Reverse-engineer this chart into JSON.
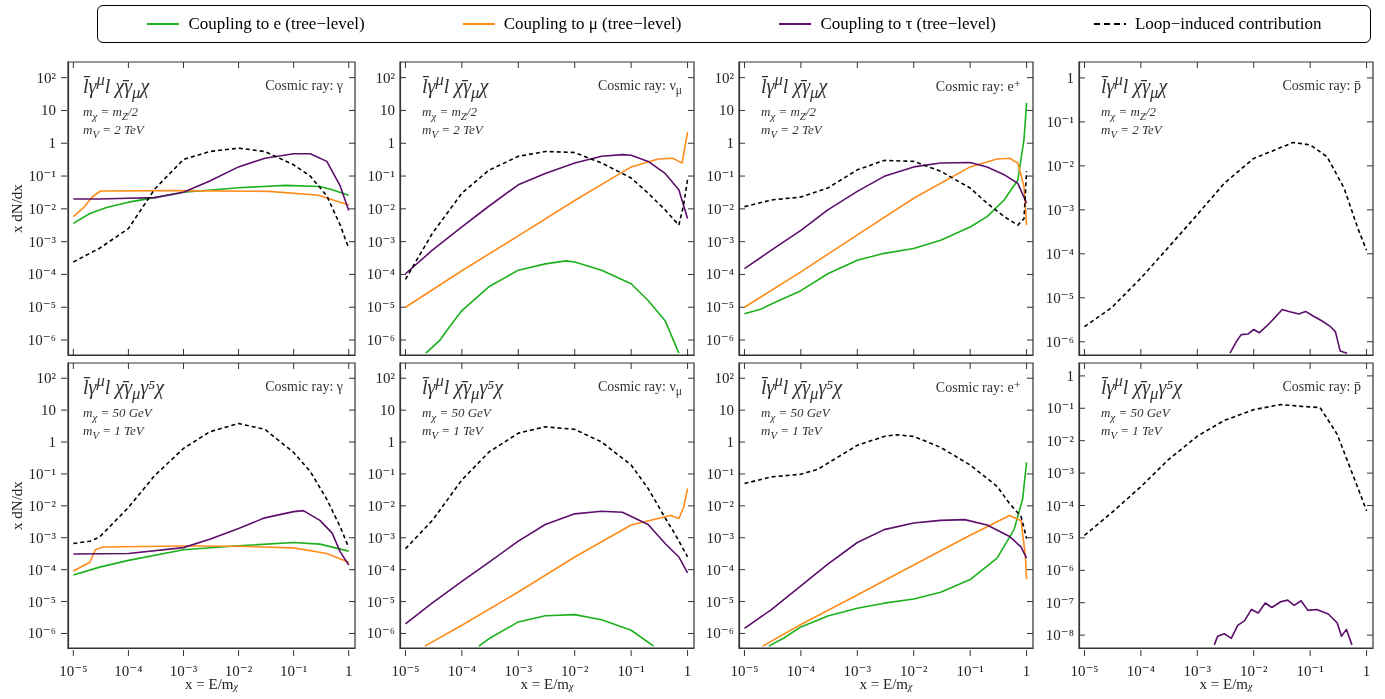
{
  "chart_data": [
    {
      "type": "line",
      "log": "xy",
      "legend": "top",
      "tick_labels": "y",
      "ylabel": "x dN/dx",
      "xlim": [
        8e-06,
        1.3
      ],
      "ylim": [
        3.5e-07,
        300
      ],
      "xticks": [
        {
          "value": 1e-05,
          "label": null
        },
        {
          "value": 0.0001,
          "label": null
        },
        {
          "value": 0.001,
          "label": null
        },
        {
          "value": 0.01,
          "label": null
        },
        {
          "value": 0.1,
          "label": null
        },
        {
          "value": 1,
          "label": null
        }
      ],
      "yticks": [
        {
          "value": 1e-06,
          "label": "10⁻⁶"
        },
        {
          "value": 1e-05,
          "label": "10⁻⁵"
        },
        {
          "value": 0.0001,
          "label": "10⁻⁴"
        },
        {
          "value": 0.001,
          "label": "10⁻³"
        },
        {
          "value": 0.01,
          "label": "10⁻²"
        },
        {
          "value": 0.1,
          "label": "10⁻¹"
        },
        {
          "value": 1,
          "label": "1"
        },
        {
          "value": 10,
          "label": "10"
        },
        {
          "value": 100,
          "label": "10²"
        }
      ],
      "annotations": [
        "l̄γ$^{μ}$l χ̄γ$_{μ}$χ",
        "Cosmic ray: γ",
        "m$_{χ}$ = m$_{Z}$/2",
        "m$_{V}$ = 2 TeV"
      ],
      "series": [
        {
          "name": "Coupling to e (tree−level)",
          "color": "#1cb01c",
          "x": [
            1e-05,
            2e-05,
            4e-05,
            0.0001,
            0.0003,
            0.001,
            0.01,
            0.07,
            0.3,
            0.5,
            1
          ],
          "values": [
            0.0036,
            0.0072,
            0.011,
            0.016,
            0.022,
            0.032,
            0.044,
            0.052,
            0.048,
            0.038,
            0.026
          ]
        },
        {
          "name": "Coupling to μ (tree−level)",
          "color": "#ff8c1a",
          "x": [
            1e-05,
            1.5e-05,
            2.2e-05,
            3.1e-05,
            0.0006,
            0.036,
            0.28,
            1
          ],
          "values": [
            0.0058,
            0.0105,
            0.023,
            0.035,
            0.036,
            0.034,
            0.026,
            0.013
          ]
        },
        {
          "name": "Coupling to τ (tree−level)",
          "color": "#5c0f6b",
          "x": [
            1e-05,
            3e-05,
            0.0001,
            0.0003,
            0.001,
            0.003,
            0.01,
            0.03,
            0.1,
            0.2,
            0.4,
            0.7,
            1
          ],
          "values": [
            0.02,
            0.02,
            0.021,
            0.022,
            0.032,
            0.071,
            0.19,
            0.35,
            0.48,
            0.48,
            0.28,
            0.05,
            0.0089
          ]
        },
        {
          "name": "Loop−induced contribution",
          "color": "#000000",
          "line_style": "dashed",
          "x": [
            1e-05,
            3e-05,
            0.0001,
            0.0003,
            0.001,
            0.003,
            0.01,
            0.03,
            0.1,
            0.2,
            0.4,
            0.7,
            1
          ],
          "values": [
            0.00024,
            0.00063,
            0.0025,
            0.04,
            0.32,
            0.56,
            0.71,
            0.56,
            0.22,
            0.1,
            0.025,
            0.0032,
            0.00063
          ]
        }
      ]
    },
    {
      "type": "line",
      "log": "xy",
      "tick_labels": "y",
      "xlim": [
        8e-06,
        1.3
      ],
      "ylim": [
        3.5e-07,
        300
      ],
      "xticks": [
        {
          "value": 1e-05,
          "label": null
        },
        {
          "value": 0.0001,
          "label": null
        },
        {
          "value": 0.001,
          "label": null
        },
        {
          "value": 0.01,
          "label": null
        },
        {
          "value": 0.1,
          "label": null
        },
        {
          "value": 1,
          "label": null
        }
      ],
      "yticks": [
        {
          "value": 1e-06,
          "label": "10⁻⁶"
        },
        {
          "value": 1e-05,
          "label": "10⁻⁵"
        },
        {
          "value": 0.0001,
          "label": "10⁻⁴"
        },
        {
          "value": 0.001,
          "label": "10⁻³"
        },
        {
          "value": 0.01,
          "label": "10⁻²"
        },
        {
          "value": 0.1,
          "label": "10⁻¹"
        },
        {
          "value": 1,
          "label": "1"
        },
        {
          "value": 10,
          "label": "10"
        },
        {
          "value": 100,
          "label": "10²"
        }
      ],
      "annotations": [
        "l̄γ$^{μ}$l χ̄γ$_{μ}$χ",
        "Cosmic ray: ν$_{μ}$",
        "m$_{χ}$ = m$_{Z}$/2",
        "m$_{V}$ = 2 TeV"
      ],
      "series": [
        {
          "color": "#1cb01c",
          "x": [
            2.3e-05,
            4.1e-05,
            6e-05,
            0.0001,
            0.0003,
            0.001,
            0.003,
            0.007,
            0.01,
            0.03,
            0.1,
            0.2,
            0.4,
            0.7
          ],
          "values": [
            4e-07,
            1e-06,
            2.5e-06,
            7.9e-06,
            4.2e-05,
            0.000135,
            0.00021,
            0.00026,
            0.00024,
            0.000135,
            5.2e-05,
            1.6e-05,
            3.9e-06,
            4e-07
          ]
        },
        {
          "color": "#ff8c1a",
          "x": [
            1e-05,
            0.0001,
            0.001,
            0.01,
            0.1,
            0.3,
            0.55,
            0.7,
            0.8,
            0.9,
            1
          ],
          "values": [
            1e-05,
            0.00013,
            0.0015,
            0.018,
            0.19,
            0.33,
            0.35,
            0.28,
            0.25,
            0.79,
            2.2
          ]
        },
        {
          "color": "#5c0f6b",
          "x": [
            1e-05,
            3e-05,
            0.0001,
            0.0003,
            0.001,
            0.003,
            0.01,
            0.03,
            0.07,
            0.1,
            0.2,
            0.4,
            0.7,
            1
          ],
          "values": [
            0.000105,
            0.00055,
            0.0028,
            0.012,
            0.054,
            0.12,
            0.25,
            0.4,
            0.45,
            0.43,
            0.28,
            0.12,
            0.038,
            0.0051
          ]
        },
        {
          "color": "#000000",
          "line_style": "dashed",
          "x": [
            1e-05,
            3e-05,
            0.0001,
            0.0003,
            0.001,
            0.003,
            0.01,
            0.03,
            0.1,
            0.2,
            0.4,
            0.7,
            0.85,
            1
          ],
          "values": [
            7.1e-05,
            0.0018,
            0.03,
            0.15,
            0.4,
            0.56,
            0.52,
            0.25,
            0.087,
            0.03,
            0.0093,
            0.0032,
            0.013,
            0.079
          ]
        }
      ]
    },
    {
      "type": "line",
      "log": "xy",
      "tick_labels": "y",
      "xlim": [
        8e-06,
        1.3
      ],
      "ylim": [
        3.5e-07,
        300
      ],
      "xticks": [
        {
          "value": 1e-05,
          "label": null
        },
        {
          "value": 0.0001,
          "label": null
        },
        {
          "value": 0.001,
          "label": null
        },
        {
          "value": 0.01,
          "label": null
        },
        {
          "value": 0.1,
          "label": null
        },
        {
          "value": 1,
          "label": null
        }
      ],
      "yticks": [
        {
          "value": 1e-06,
          "label": "10⁻⁶"
        },
        {
          "value": 1e-05,
          "label": "10⁻⁵"
        },
        {
          "value": 0.0001,
          "label": "10⁻⁴"
        },
        {
          "value": 0.001,
          "label": "10⁻³"
        },
        {
          "value": 0.01,
          "label": "10⁻²"
        },
        {
          "value": 0.1,
          "label": "10⁻¹"
        },
        {
          "value": 1,
          "label": "1"
        },
        {
          "value": 10,
          "label": "10"
        },
        {
          "value": 100,
          "label": "10²"
        }
      ],
      "annotations": [
        "l̄γ$^{μ}$l χ̄γ$_{μ}$χ",
        "Cosmic ray: e⁺",
        "m$_{χ}$ = m$_{Z}$/2",
        "m$_{V}$ = 2 TeV"
      ],
      "series": [
        {
          "color": "#1cb01c",
          "x": [
            1e-05,
            2e-05,
            3e-05,
            0.0001,
            0.0003,
            0.001,
            0.003,
            0.01,
            0.03,
            0.1,
            0.2,
            0.4,
            0.7,
            0.9,
            1
          ],
          "values": [
            6.3e-06,
            8.9e-06,
            1.26e-05,
            3.2e-05,
            0.000105,
            0.00027,
            0.00044,
            0.00062,
            0.0011,
            0.0028,
            0.0058,
            0.0186,
            0.076,
            1.3,
            17
          ]
        },
        {
          "color": "#ff8c1a",
          "x": [
            1e-05,
            0.0001,
            0.001,
            0.01,
            0.1,
            0.3,
            0.5,
            0.7,
            0.9,
            1
          ],
          "values": [
            1e-05,
            0.00012,
            0.0016,
            0.021,
            0.19,
            0.33,
            0.35,
            0.25,
            0.048,
            0.0032
          ]
        },
        {
          "color": "#5c0f6b",
          "x": [
            1e-05,
            3e-05,
            0.0001,
            0.0003,
            0.001,
            0.003,
            0.01,
            0.03,
            0.1,
            0.2,
            0.4,
            0.7,
            1
          ],
          "values": [
            0.00015,
            0.00055,
            0.0022,
            0.0093,
            0.034,
            0.098,
            0.19,
            0.25,
            0.26,
            0.19,
            0.11,
            0.06,
            0.015
          ]
        },
        {
          "color": "#000000",
          "line_style": "dashed",
          "x": [
            1e-05,
            3e-05,
            0.0001,
            0.0003,
            0.001,
            0.003,
            0.01,
            0.03,
            0.1,
            0.2,
            0.4,
            0.7,
            0.9,
            1
          ],
          "values": [
            0.0117,
            0.0186,
            0.023,
            0.043,
            0.155,
            0.3,
            0.28,
            0.14,
            0.043,
            0.0148,
            0.0058,
            0.0032,
            0.005,
            0.14
          ]
        }
      ]
    },
    {
      "type": "line",
      "log": "xy",
      "tick_labels": "y",
      "xlim": [
        8e-06,
        1.3
      ],
      "ylim": [
        5e-07,
        2.3
      ],
      "xticks": [
        {
          "value": 1e-05,
          "label": null
        },
        {
          "value": 0.0001,
          "label": null
        },
        {
          "value": 0.001,
          "label": null
        },
        {
          "value": 0.01,
          "label": null
        },
        {
          "value": 0.1,
          "label": null
        },
        {
          "value": 1,
          "label": null
        }
      ],
      "yticks": [
        {
          "value": 1e-06,
          "label": "10⁻⁶"
        },
        {
          "value": 1e-05,
          "label": "10⁻⁵"
        },
        {
          "value": 0.0001,
          "label": "10⁻⁴"
        },
        {
          "value": 0.001,
          "label": "10⁻³"
        },
        {
          "value": 0.01,
          "label": "10⁻²"
        },
        {
          "value": 0.1,
          "label": "10⁻¹"
        },
        {
          "value": 1,
          "label": "1"
        }
      ],
      "annotations": [
        "l̄γ$^{μ}$l χ̄γ$_{μ}$χ",
        "Cosmic ray: p̄",
        "m$_{χ}$ = m$_{Z}$/2",
        "m$_{V}$ = 2 TeV"
      ],
      "series": [
        {
          "color": "#5c0f6b",
          "x": [
            0.0038,
            0.0049,
            0.006,
            0.0079,
            0.01,
            0.0125,
            0.0165,
            0.023,
            0.032,
            0.042,
            0.063,
            0.083,
            0.115,
            0.16,
            0.23,
            0.28,
            0.34,
            0.45
          ],
          "values": [
            5.5e-07,
            1e-06,
            1.45e-06,
            1.5e-06,
            1.9e-06,
            1.6e-06,
            2.2e-06,
            3.4e-06,
            5.4e-06,
            4.9e-06,
            4.3e-06,
            4.9e-06,
            3.8e-06,
            3e-06,
            2.2e-06,
            1.7e-06,
            6.2e-07,
            5.5e-07
          ]
        },
        {
          "color": "#000000",
          "line_style": "dashed",
          "x": [
            1e-05,
            3e-05,
            0.0001,
            0.0003,
            0.001,
            0.003,
            0.01,
            0.03,
            0.05,
            0.1,
            0.2,
            0.4,
            0.7,
            1
          ],
          "values": [
            2.2e-06,
            5.9e-06,
            2.8e-05,
            0.000135,
            0.00078,
            0.004,
            0.0148,
            0.026,
            0.034,
            0.03,
            0.016,
            0.0031,
            0.00038,
            0.00012
          ]
        }
      ]
    },
    {
      "type": "line",
      "log": "xy",
      "ylabel": "x dN/dx",
      "xlabel": "x = E/m$_{χ}$",
      "xlim": [
        8e-06,
        1.3
      ],
      "ylim": [
        3.5e-07,
        300
      ],
      "xticks": [
        {
          "value": 1e-05,
          "label": "10⁻⁵"
        },
        {
          "value": 0.0001,
          "label": "10⁻⁴"
        },
        {
          "value": 0.001,
          "label": "10⁻³"
        },
        {
          "value": 0.01,
          "label": "10⁻²"
        },
        {
          "value": 0.1,
          "label": "10⁻¹"
        },
        {
          "value": 1,
          "label": "1"
        }
      ],
      "yticks": [
        {
          "value": 1e-06,
          "label": "10⁻⁶"
        },
        {
          "value": 1e-05,
          "label": "10⁻⁵"
        },
        {
          "value": 0.0001,
          "label": "10⁻⁴"
        },
        {
          "value": 0.001,
          "label": "10⁻³"
        },
        {
          "value": 0.01,
          "label": "10⁻²"
        },
        {
          "value": 0.1,
          "label": "10⁻¹"
        },
        {
          "value": 1,
          "label": "1"
        },
        {
          "value": 10,
          "label": "10"
        },
        {
          "value": 100,
          "label": "10²"
        }
      ],
      "annotations": [
        "l̄γ$^{μ}$l χ̄γ$_{μ}$γ⁵χ",
        "Cosmic ray: γ",
        "m$_{χ}$ = 50 GeV",
        "m$_{V}$ = 1 TeV"
      ],
      "series": [
        {
          "color": "#1cb01c",
          "x": [
            1e-05,
            3e-05,
            0.0001,
            0.001,
            0.01,
            0.1,
            0.3,
            1
          ],
          "values": [
            6.8e-05,
            0.00012,
            0.000195,
            0.00042,
            0.00056,
            0.00071,
            0.00063,
            0.00038
          ]
        },
        {
          "color": "#ff8c1a",
          "x": [
            1e-05,
            2e-05,
            2.5e-05,
            3.5e-05,
            0.001,
            0.01,
            0.1,
            0.4,
            1
          ],
          "values": [
            9.1e-05,
            0.00017,
            0.00042,
            0.00051,
            0.00055,
            0.00054,
            0.00048,
            0.00032,
            0.00017
          ]
        },
        {
          "color": "#5c0f6b",
          "x": [
            1e-05,
            0.0001,
            0.001,
            0.003,
            0.01,
            0.03,
            0.1,
            0.15,
            0.3,
            0.5,
            0.7,
            1
          ],
          "values": [
            0.00031,
            0.00032,
            0.00049,
            0.00089,
            0.00195,
            0.0042,
            0.0066,
            0.0071,
            0.0035,
            0.0014,
            0.00036,
            0.00014
          ]
        },
        {
          "color": "#000000",
          "line_style": "dashed",
          "x": [
            1e-05,
            2e-05,
            3e-05,
            0.0001,
            0.0003,
            0.001,
            0.003,
            0.01,
            0.03,
            0.1,
            0.2,
            0.4,
            0.7,
            1
          ],
          "values": [
            0.00066,
            0.00078,
            0.00105,
            0.0089,
            0.089,
            0.63,
            2.1,
            3.8,
            2.5,
            0.47,
            0.12,
            0.016,
            0.0022,
            0.00049
          ]
        }
      ]
    },
    {
      "type": "line",
      "log": "xy",
      "xlabel": "x = E/m$_{χ}$",
      "xlim": [
        8e-06,
        1.3
      ],
      "ylim": [
        3.5e-07,
        300
      ],
      "xticks": [
        {
          "value": 1e-05,
          "label": "10⁻⁵"
        },
        {
          "value": 0.0001,
          "label": "10⁻⁴"
        },
        {
          "value": 0.001,
          "label": "10⁻³"
        },
        {
          "value": 0.01,
          "label": "10⁻²"
        },
        {
          "value": 0.1,
          "label": "10⁻¹"
        },
        {
          "value": 1,
          "label": "1"
        }
      ],
      "yticks": [
        {
          "value": 1e-06,
          "label": "10⁻⁶"
        },
        {
          "value": 1e-05,
          "label": "10⁻⁵"
        },
        {
          "value": 0.0001,
          "label": "10⁻⁴"
        },
        {
          "value": 0.001,
          "label": "10⁻³"
        },
        {
          "value": 0.01,
          "label": "10⁻²"
        },
        {
          "value": 0.1,
          "label": "10⁻¹"
        },
        {
          "value": 1,
          "label": "1"
        },
        {
          "value": 10,
          "label": "10"
        },
        {
          "value": 100,
          "label": "10²"
        }
      ],
      "annotations": [
        "l̄γ$^{μ}$l χ̄γ$_{μ}$γ⁵χ",
        "Cosmic ray: ν$_{μ}$",
        "m$_{χ}$ = 50 GeV",
        "m$_{V}$ = 1 TeV"
      ],
      "series": [
        {
          "color": "#1cb01c",
          "x": [
            0.0002,
            0.0003,
            0.001,
            0.003,
            0.01,
            0.03,
            0.1,
            0.25
          ],
          "values": [
            4e-07,
            6.8e-07,
            2.3e-06,
            3.6e-06,
            3.9e-06,
            2.7e-06,
            1.26e-06,
            4e-07
          ]
        },
        {
          "color": "#ff8c1a",
          "x": [
            2.2e-05,
            0.0001,
            0.001,
            0.01,
            0.1,
            0.5,
            0.7,
            0.85,
            1
          ],
          "values": [
            4e-07,
            1.8e-06,
            2e-05,
            0.00025,
            0.0025,
            0.005,
            0.004,
            0.0089,
            0.035
          ]
        },
        {
          "color": "#5c0f6b",
          "x": [
            1e-05,
            3e-05,
            0.0001,
            0.0003,
            0.001,
            0.003,
            0.01,
            0.03,
            0.07,
            0.2,
            0.4,
            0.7,
            1
          ],
          "values": [
            2e-06,
            9.1e-06,
            4.3e-05,
            0.00017,
            0.00078,
            0.0026,
            0.0056,
            0.0068,
            0.0063,
            0.0026,
            0.00066,
            0.00025,
            7.9e-05
          ]
        },
        {
          "color": "#000000",
          "line_style": "dashed",
          "x": [
            1e-05,
            3e-05,
            0.0001,
            0.0003,
            0.001,
            0.003,
            0.01,
            0.03,
            0.1,
            0.2,
            0.4,
            0.6,
            1
          ],
          "values": [
            0.00045,
            0.0035,
            0.065,
            0.48,
            1.9,
            3,
            2.5,
            1,
            0.19,
            0.035,
            0.0042,
            0.0013,
            0.00025
          ]
        }
      ]
    },
    {
      "type": "line",
      "log": "xy",
      "xlabel": "x = E/m$_{χ}$",
      "xlim": [
        8e-06,
        1.3
      ],
      "ylim": [
        3.5e-07,
        300
      ],
      "xticks": [
        {
          "value": 1e-05,
          "label": "10⁻⁵"
        },
        {
          "value": 0.0001,
          "label": "10⁻⁴"
        },
        {
          "value": 0.001,
          "label": "10⁻³"
        },
        {
          "value": 0.01,
          "label": "10⁻²"
        },
        {
          "value": 0.1,
          "label": "10⁻¹"
        },
        {
          "value": 1,
          "label": "1"
        }
      ],
      "yticks": [
        {
          "value": 1e-06,
          "label": "10⁻⁶"
        },
        {
          "value": 1e-05,
          "label": "10⁻⁵"
        },
        {
          "value": 0.0001,
          "label": "10⁻⁴"
        },
        {
          "value": 0.001,
          "label": "10⁻³"
        },
        {
          "value": 0.01,
          "label": "10⁻²"
        },
        {
          "value": 0.1,
          "label": "10⁻¹"
        },
        {
          "value": 1,
          "label": "1"
        },
        {
          "value": 10,
          "label": "10"
        },
        {
          "value": 100,
          "label": "10²"
        }
      ],
      "annotations": [
        "l̄γ$^{μ}$l χ̄γ$_{μ}$γ⁵χ",
        "Cosmic ray: e⁺",
        "m$_{χ}$ = 50 GeV",
        "m$_{V}$ = 1 TeV"
      ],
      "series": [
        {
          "color": "#1cb01c",
          "x": [
            2.7e-05,
            5e-05,
            0.0001,
            0.0003,
            0.001,
            0.003,
            0.01,
            0.03,
            0.1,
            0.3,
            0.6,
            0.85,
            1
          ],
          "values": [
            4e-07,
            7.2e-07,
            1.6e-06,
            3.5e-06,
            6.2e-06,
            8.9e-06,
            1.2e-05,
            1.95e-05,
            4.9e-05,
            0.00023,
            0.0018,
            0.016,
            0.23
          ]
        },
        {
          "color": "#ff8c1a",
          "x": [
            2.1e-05,
            0.0001,
            0.001,
            0.01,
            0.1,
            0.5,
            0.8,
            0.95,
            1
          ],
          "values": [
            4e-07,
            1.9e-06,
            1.6e-05,
            0.00014,
            0.0012,
            0.005,
            0.0034,
            0.00028,
            5e-05
          ]
        },
        {
          "color": "#5c0f6b",
          "x": [
            1e-05,
            3e-05,
            0.0001,
            0.0003,
            0.001,
            0.003,
            0.01,
            0.03,
            0.08,
            0.2,
            0.5,
            0.8,
            1
          ],
          "values": [
            1.45e-06,
            5.6e-06,
            3.1e-05,
            0.00015,
            0.00071,
            0.0018,
            0.0029,
            0.0035,
            0.0037,
            0.0025,
            0.0011,
            0.00051,
            0.00023
          ]
        },
        {
          "color": "#000000",
          "line_style": "dashed",
          "x": [
            1e-05,
            3e-05,
            0.0001,
            0.0002,
            0.001,
            0.003,
            0.005,
            0.01,
            0.03,
            0.1,
            0.3,
            0.5,
            0.8,
            1
          ],
          "values": [
            0.05,
            0.081,
            0.098,
            0.14,
            0.79,
            1.5,
            1.7,
            1.5,
            0.68,
            0.19,
            0.041,
            0.0117,
            0.0046,
            0.00095
          ]
        }
      ]
    },
    {
      "type": "line",
      "log": "xy",
      "xlabel": "x = E/m$_{χ}$",
      "xlim": [
        8e-06,
        1.3
      ],
      "ylim": [
        4e-09,
        2.5
      ],
      "xticks": [
        {
          "value": 1e-05,
          "label": "10⁻⁵"
        },
        {
          "value": 0.0001,
          "label": "10⁻⁴"
        },
        {
          "value": 0.001,
          "label": "10⁻³"
        },
        {
          "value": 0.01,
          "label": "10⁻²"
        },
        {
          "value": 0.1,
          "label": "10⁻¹"
        },
        {
          "value": 1,
          "label": "1"
        }
      ],
      "yticks": [
        {
          "value": 1e-08,
          "label": "10⁻⁸"
        },
        {
          "value": 1e-07,
          "label": "10⁻⁷"
        },
        {
          "value": 1e-06,
          "label": "10⁻⁶"
        },
        {
          "value": 1e-05,
          "label": "10⁻⁵"
        },
        {
          "value": 0.0001,
          "label": "10⁻⁴"
        },
        {
          "value": 0.001,
          "label": "10⁻³"
        },
        {
          "value": 0.01,
          "label": "10⁻²"
        },
        {
          "value": 0.1,
          "label": "10⁻¹"
        },
        {
          "value": 1,
          "label": "1"
        }
      ],
      "annotations": [
        "l̄γ$^{μ}$l χ̄γ$_{μ}$γ⁵χ",
        "Cosmic ray: p̄",
        "m$_{χ}$ = 50 GeV",
        "m$_{V}$ = 1 TeV"
      ],
      "series": [
        {
          "color": "#5c0f6b",
          "x": [
            0.002,
            0.0023,
            0.003,
            0.004,
            0.0052,
            0.0069,
            0.0091,
            0.012,
            0.016,
            0.021,
            0.03,
            0.04,
            0.052,
            0.069,
            0.091,
            0.13,
            0.21,
            0.3,
            0.36,
            0.44,
            0.55
          ],
          "values": [
            5e-09,
            9.3e-09,
            1.1e-08,
            7.9e-09,
            2e-08,
            2.8e-08,
            6.2e-08,
            4.8e-08,
            9.8e-08,
            7.1e-08,
            1.07e-07,
            1.2e-07,
            8.3e-08,
            1.15e-07,
            5.8e-08,
            6.2e-08,
            4.5e-08,
            2.4e-08,
            9.3e-09,
            1.5e-08,
            5e-09
          ]
        },
        {
          "color": "#000000",
          "line_style": "dashed",
          "x": [
            1e-05,
            3e-05,
            0.0001,
            0.0003,
            0.001,
            0.003,
            0.01,
            0.03,
            0.07,
            0.15,
            0.3,
            0.6,
            1
          ],
          "values": [
            1.2e-05,
            5.9e-05,
            0.00038,
            0.0025,
            0.0138,
            0.042,
            0.091,
            0.13,
            0.115,
            0.105,
            0.016,
            0.00071,
            6.9e-05
          ]
        }
      ]
    }
  ]
}
